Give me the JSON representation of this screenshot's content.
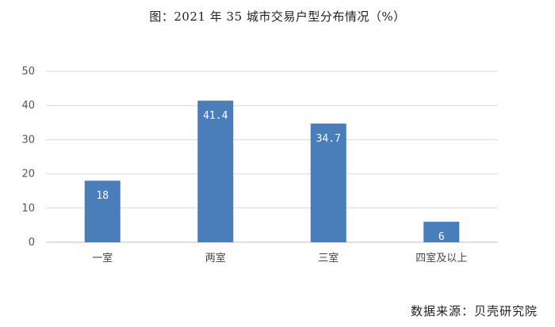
{
  "chart_data": {
    "type": "bar",
    "title": "图：2021 年 35 城市交易户型分布情况（%）",
    "categories": [
      "一室",
      "两室",
      "三室",
      "四室及以上"
    ],
    "values": [
      18,
      41.4,
      34.7,
      6
    ],
    "data_labels": [
      "18",
      "41.4",
      "34.7",
      "6"
    ],
    "yticks": [
      "0",
      "10",
      "20",
      "30",
      "40",
      "50"
    ],
    "ylim": [
      0,
      50
    ],
    "grid": true,
    "bar_color": "#4A7EBB",
    "source": "数据来源：贝壳研究院"
  }
}
